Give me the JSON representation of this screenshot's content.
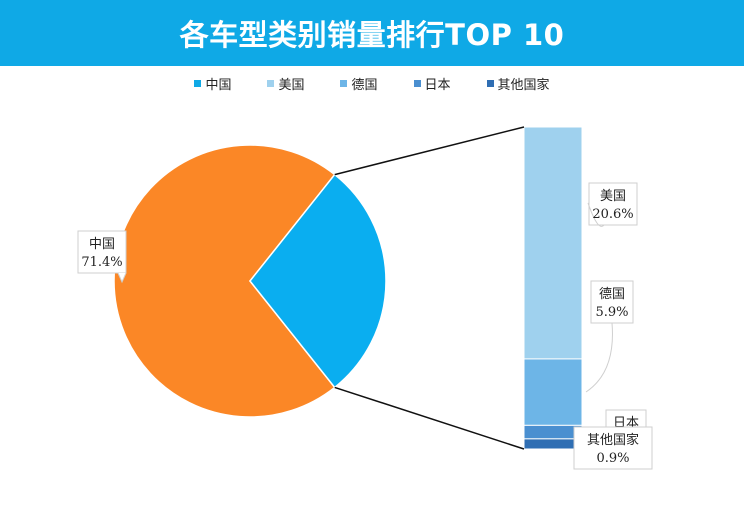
{
  "header": {
    "title": "各车型类别销量排行TOP 10"
  },
  "chart_data": {
    "type": "pie",
    "subtype": "pie-of-bar",
    "legend_position": "top",
    "slices": [
      {
        "name": "中国",
        "value": 71.4,
        "label": "71.4%",
        "color": "#fb8726"
      },
      {
        "name": "美国",
        "value": 20.6,
        "label": "20.6%",
        "color": "#9fd1ee"
      },
      {
        "name": "德国",
        "value": 5.9,
        "label": "5.9%",
        "color": "#6db5e7"
      },
      {
        "name": "日本",
        "value": 1.2,
        "label": "",
        "color": "#4a8fd0"
      },
      {
        "name": "其他国家",
        "value": 0.9,
        "label": "0.9%",
        "color": "#2f6eb3"
      }
    ],
    "legend": [
      {
        "name": "中国",
        "color": "#0fa9e6"
      },
      {
        "name": "美国",
        "color": "#9fd1ee"
      },
      {
        "name": "德国",
        "color": "#6db5e7"
      },
      {
        "name": "日本",
        "color": "#4a8fd0"
      },
      {
        "name": "其他国家",
        "color": "#2f6eb3"
      }
    ],
    "aggregate_slice_color": "#0aaef0"
  }
}
